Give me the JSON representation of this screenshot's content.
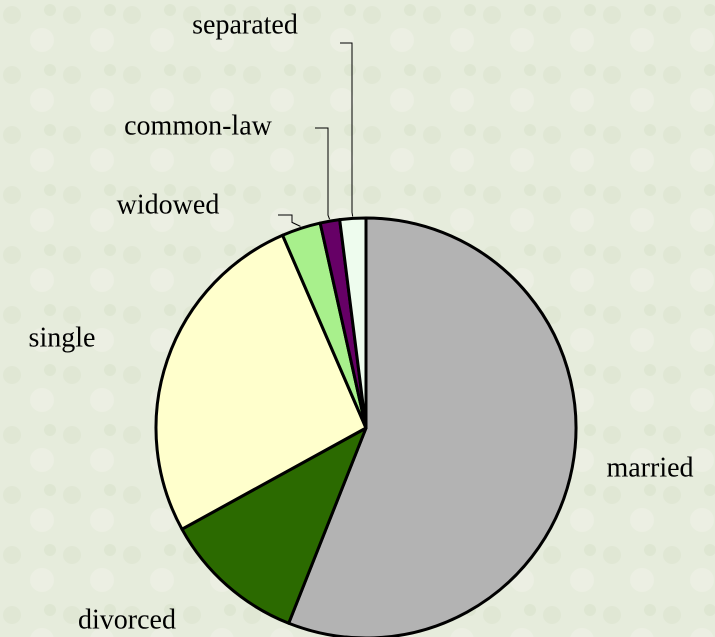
{
  "chart_data": {
    "type": "pie",
    "categories": [
      "married",
      "divorced",
      "single",
      "widowed",
      "common-law",
      "separated"
    ],
    "values": [
      56,
      11,
      26.5,
      3,
      1.5,
      2
    ],
    "colors": [
      "#b3b3b3",
      "#2b6a00",
      "#ffffcc",
      "#a8f08c",
      "#660066",
      "#eefcee"
    ]
  }
}
